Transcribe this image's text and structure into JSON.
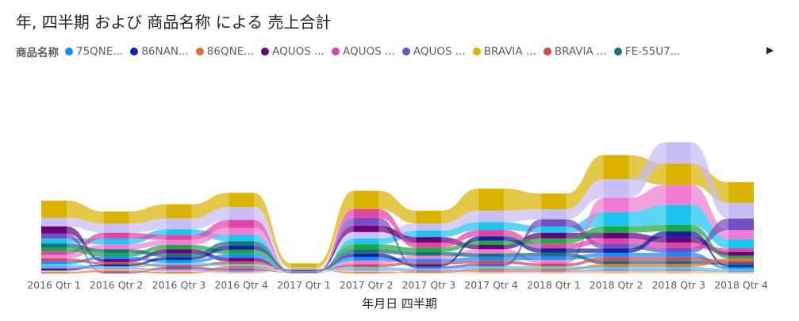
{
  "title": "年, 四半期 および 商品名称 による 売上合計",
  "legend": {
    "title": "商品名称",
    "next_icon": "chevron-right-icon",
    "items": [
      {
        "label": "75QNE...",
        "color": "#118DFF"
      },
      {
        "label": "86NAN...",
        "color": "#12239E"
      },
      {
        "label": "86QNE...",
        "color": "#E66C37"
      },
      {
        "label": "AQUOS ...",
        "color": "#6B007B"
      },
      {
        "label": "AQUOS ...",
        "color": "#E044A7"
      },
      {
        "label": "AQUOS ...",
        "color": "#744EC2"
      },
      {
        "label": "BRAVIA ...",
        "color": "#D9B300"
      },
      {
        "label": "BRAVIA ...",
        "color": "#D64550"
      },
      {
        "label": "FE-55U7...",
        "color": "#197278"
      }
    ]
  },
  "chart_data": {
    "type": "ribbon",
    "title": "年, 四半期 および 商品名称 による 売上合計",
    "xlabel": "年月日 四半期",
    "ylabel": "",
    "categories": [
      "2016 Qtr 1",
      "2016 Qtr 2",
      "2016 Qtr 3",
      "2016 Qtr 4",
      "2017 Qtr 1",
      "2017 Qtr 2",
      "2017 Qtr 3",
      "2017 Qtr 4",
      "2018 Qtr 1",
      "2018 Qtr 2",
      "2018 Qtr 3",
      "2018 Qtr 4"
    ],
    "series_colors": [
      "#D9B300",
      "#C8BDF5",
      "#1AC6F0",
      "#F07BD3",
      "#744EC2",
      "#6B007B",
      "#E044A7",
      "#1AAB40",
      "#118DFF",
      "#12239E",
      "#197278",
      "#D64550",
      "#E66C37",
      "#F2C080",
      "#9B8BD8",
      "#3BD5E8"
    ],
    "values": [
      [
        24,
        12,
        7,
        5,
        7,
        10,
        5,
        5,
        4,
        3,
        6,
        4,
        2,
        2,
        3,
        3
      ],
      [
        17,
        13,
        8,
        7,
        2,
        4,
        8,
        5,
        4,
        3,
        5,
        3,
        2,
        2,
        2,
        2
      ],
      [
        20,
        15,
        8,
        7,
        3,
        6,
        7,
        6,
        4,
        4,
        5,
        3,
        2,
        2,
        2,
        3
      ],
      [
        20,
        18,
        9,
        10,
        3,
        5,
        11,
        6,
        5,
        6,
        6,
        4,
        3,
        2,
        2,
        3
      ],
      [
        6,
        1,
        0.5,
        0.5,
        0.5,
        0.5,
        0.5,
        0.5,
        0.5,
        0.5,
        0.5,
        0.5,
        0.5,
        0.5,
        0.5,
        0.5
      ],
      [
        26,
        9,
        8,
        5,
        11,
        9,
        12,
        7,
        5,
        5,
        6,
        4,
        2,
        2,
        2,
        3
      ],
      [
        18,
        10,
        9,
        5,
        3,
        8,
        7,
        6,
        4,
        3,
        5,
        3,
        2,
        1,
        2,
        2
      ],
      [
        31,
        16,
        11,
        6,
        4,
        6,
        9,
        6,
        5,
        6,
        5,
        4,
        3,
        2,
        2,
        3
      ],
      [
        22,
        14,
        9,
        5,
        10,
        8,
        7,
        7,
        5,
        6,
        5,
        4,
        3,
        2,
        2,
        3
      ],
      [
        34,
        26,
        20,
        20,
        7,
        8,
        7,
        9,
        6,
        6,
        5,
        5,
        4,
        3,
        3,
        3
      ],
      [
        30,
        30,
        28,
        28,
        7,
        8,
        7,
        9,
        6,
        8,
        5,
        5,
        4,
        3,
        3,
        3
      ],
      [
        29,
        22,
        13,
        13,
        16,
        5,
        5,
        4,
        3,
        3,
        3,
        3,
        3,
        2,
        2,
        2
      ]
    ],
    "grid": false,
    "legend_position": "top-left"
  }
}
